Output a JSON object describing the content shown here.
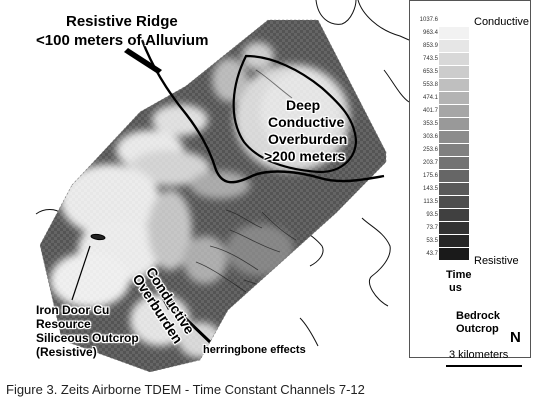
{
  "map": {
    "labels": {
      "ridge_title": "Resistive Ridge",
      "ridge_sub": "<100 meters of Alluvium",
      "deep_l1": "Deep",
      "deep_l2": "Conductive",
      "deep_l3": "Overburden",
      "deep_l4": ">200 meters",
      "conductive_overburden": "Conductive Overburden",
      "iron_l1": "Iron Door Cu",
      "iron_l2": "Resource",
      "iron_l3": "Siliceous Outcrop",
      "iron_l4": "(Resistive)",
      "herringbone": "herringbone effects"
    }
  },
  "legend": {
    "conductive": "Conductive",
    "resistive": "Resistive",
    "units_l1": "Time",
    "units_l2": "us",
    "bedrock_l1": "Bedrock",
    "bedrock_l2": "Outcrop",
    "north": "N",
    "scale": "3 kilometers",
    "ticks": [
      "1037.6",
      "963.4",
      "853.9",
      "743.5",
      "653.5",
      "553.8",
      "474.1",
      "401.7",
      "353.5",
      "303.6",
      "253.6",
      "203.7",
      "175.6",
      "143.5",
      "113.5",
      "93.5",
      "73.7",
      "53.5",
      "43.7"
    ],
    "colors": [
      "#ffffff",
      "#f2f2f2",
      "#e6e6e6",
      "#d8d8d8",
      "#cccccc",
      "#bfbfbf",
      "#b3b3b3",
      "#a6a6a6",
      "#999999",
      "#8c8c8c",
      "#808080",
      "#737373",
      "#666666",
      "#595959",
      "#4d4d4d",
      "#404040",
      "#333333",
      "#262626",
      "#1a1a1a"
    ]
  },
  "caption": "Figure 3. Zeits Airborne TDEM - Time Constant Channels 7-12"
}
